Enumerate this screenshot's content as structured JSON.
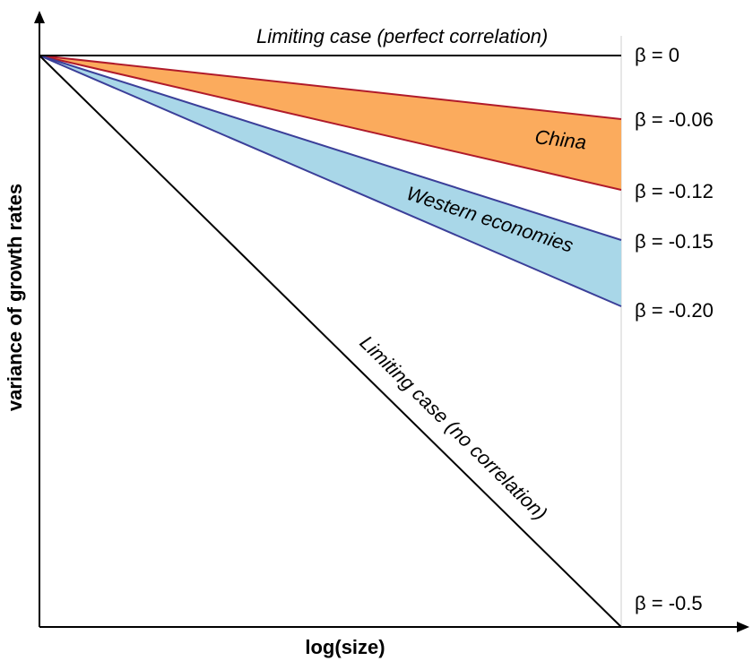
{
  "axes": {
    "xlabel": "log(size)",
    "ylabel": "variance of growth rates"
  },
  "lines": [
    {
      "label": "Limiting case (perfect correlation)",
      "beta_label": "β = 0",
      "beta": 0
    },
    {
      "label": "Limiting case (no correlation)",
      "beta_label": "β = -0.5",
      "beta": -0.5
    }
  ],
  "bands": [
    {
      "label": "China",
      "beta_upper_label": "β = -0.06",
      "beta_lower_label": "β = -0.12",
      "beta_upper": -0.06,
      "beta_lower": -0.12,
      "fill": "#fbab5d",
      "stroke": "#b01a2a"
    },
    {
      "label": "Western economies",
      "beta_upper_label": "β = -0.15",
      "beta_lower_label": "β = -0.20",
      "beta_upper": -0.15,
      "beta_lower": -0.2,
      "fill": "#a9d7e8",
      "stroke": "#3b3f99"
    }
  ]
}
